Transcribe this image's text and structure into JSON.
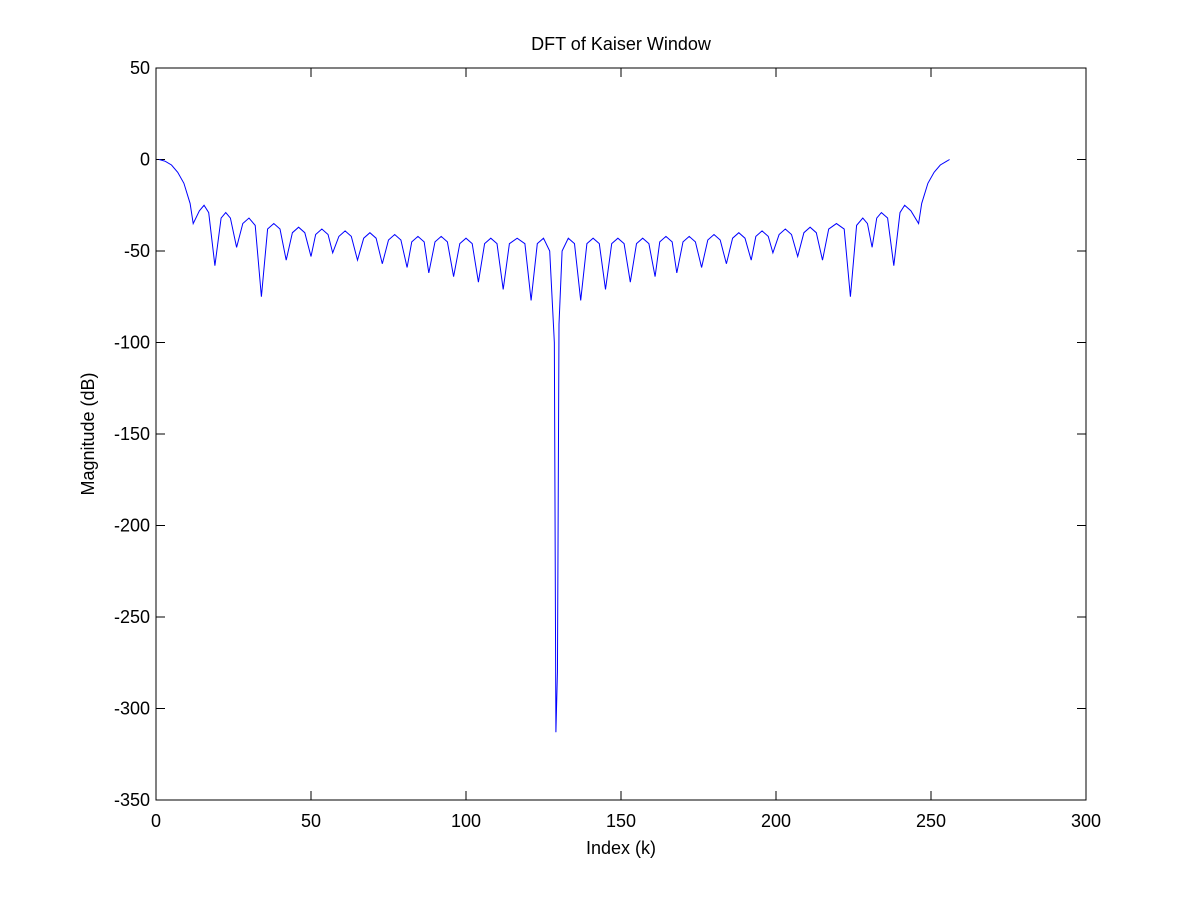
{
  "chart_data": {
    "type": "line",
    "title": "DFT of Kaiser Window",
    "xlabel": "Index (k)",
    "ylabel": "Magnitude (dB)",
    "x": [
      1,
      3,
      5,
      7,
      9,
      11,
      12,
      14,
      15.5,
      17,
      19,
      21,
      22.5,
      24,
      26,
      28,
      30,
      32,
      34,
      36,
      38,
      40,
      42,
      44,
      46,
      48,
      50,
      51.5,
      53.5,
      55.5,
      57,
      59,
      61,
      63,
      65,
      67,
      69,
      71,
      73,
      75,
      77,
      79,
      81,
      82.5,
      84.5,
      86.5,
      88,
      90,
      92,
      94,
      96,
      98,
      100,
      102,
      104,
      106,
      108,
      110,
      112,
      114,
      116.5,
      119,
      121,
      123,
      125,
      127,
      128.5,
      129,
      129.5,
      130,
      131,
      133,
      135,
      137,
      139,
      141,
      143,
      145,
      147,
      149,
      151,
      153,
      155,
      157,
      159,
      161,
      162.5,
      164.5,
      166.5,
      168,
      170,
      172,
      174,
      176,
      178,
      180,
      182,
      184,
      186,
      188,
      190,
      192,
      193.5,
      195.5,
      197.5,
      199,
      201,
      203,
      205,
      207,
      209,
      211,
      213,
      215,
      217,
      219.5,
      222,
      224,
      226,
      228,
      229.5,
      231,
      232.5,
      234,
      236,
      238,
      240,
      241.5,
      243.5,
      246,
      247,
      249,
      251,
      253,
      255,
      256
    ],
    "series": [
      {
        "name": "DFT",
        "color": "#0000ff",
        "values": [
          0,
          -1,
          -3,
          -7,
          -13,
          -24,
          -35,
          -28,
          -25,
          -29,
          -58,
          -32,
          -29,
          -32,
          -48,
          -35,
          -32,
          -36,
          -75,
          -38,
          -35,
          -38,
          -55,
          -40,
          -37,
          -40,
          -53,
          -41,
          -38,
          -41,
          -51,
          -42,
          -39,
          -42,
          -55,
          -43,
          -40,
          -43,
          -57,
          -44,
          -41,
          -44,
          -59,
          -45,
          -42,
          -45,
          -62,
          -45,
          -42,
          -45,
          -64,
          -46,
          -43,
          -46,
          -67,
          -46,
          -43,
          -46,
          -71,
          -46,
          -43,
          -46,
          -77,
          -46,
          -43,
          -50,
          -100,
          -313,
          -280,
          -90,
          -50,
          -43,
          -46,
          -77,
          -46,
          -43,
          -46,
          -71,
          -46,
          -43,
          -46,
          -67,
          -46,
          -43,
          -46,
          -64,
          -45,
          -42,
          -45,
          -62,
          -45,
          -42,
          -45,
          -59,
          -44,
          -41,
          -44,
          -57,
          -43,
          -40,
          -43,
          -55,
          -42,
          -39,
          -42,
          -51,
          -41,
          -38,
          -41,
          -53,
          -40,
          -37,
          -40,
          -55,
          -38,
          -35,
          -38,
          -75,
          -36,
          -32,
          -35,
          -48,
          -32,
          -29,
          -32,
          -58,
          -29,
          -25,
          -28,
          -35,
          -24,
          -13,
          -7,
          -3,
          -1,
          0
        ]
      }
    ],
    "xlim": [
      0,
      300
    ],
    "xticks": [
      0,
      50,
      100,
      150,
      200,
      250,
      300
    ],
    "ylim": [
      -350,
      50
    ],
    "yticks": [
      -350,
      -300,
      -250,
      -200,
      -150,
      -100,
      -50,
      0,
      50
    ]
  }
}
